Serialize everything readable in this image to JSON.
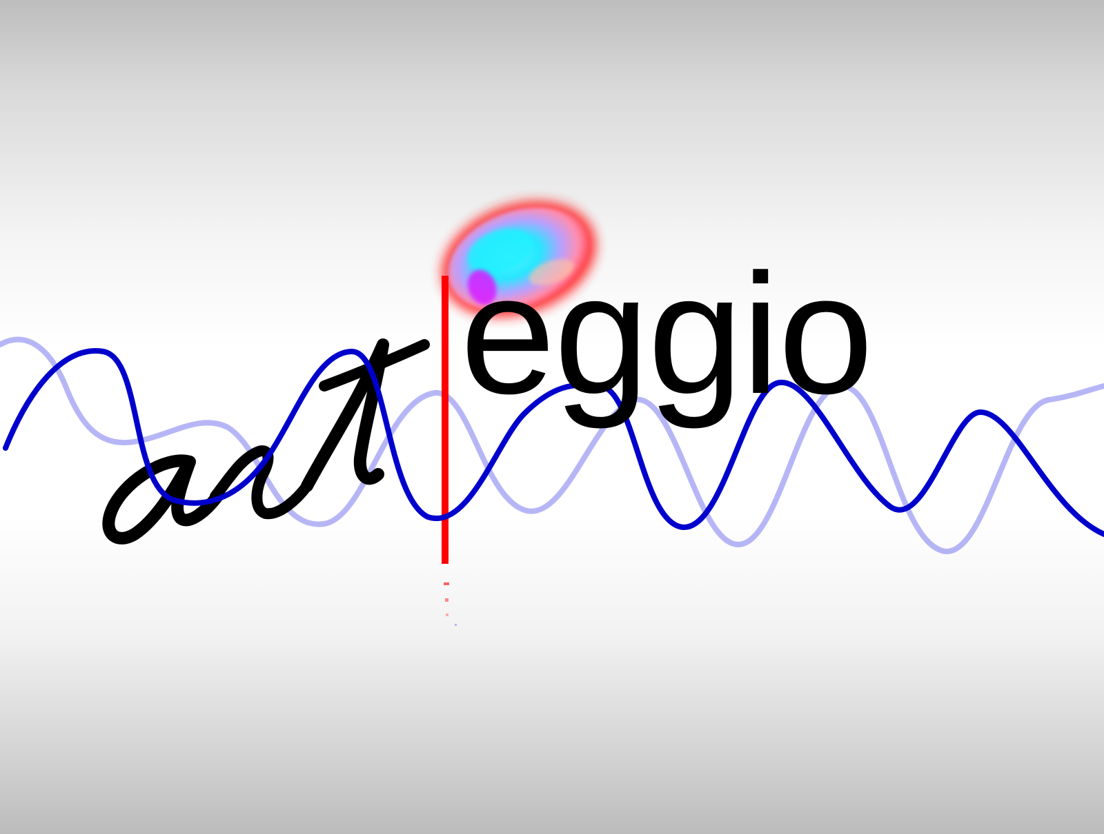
{
  "logo": {
    "handwritten_part": "art",
    "typed_part": "eggio",
    "colors": {
      "text": "#000000",
      "stem": "#ff0000",
      "wave_primary": "#0000cc",
      "wave_secondary": "#7a7aee",
      "note_rim": "#ff1a1a",
      "note_fill_cyan": "#22eeff",
      "note_fill_magenta": "#e020ff"
    }
  }
}
